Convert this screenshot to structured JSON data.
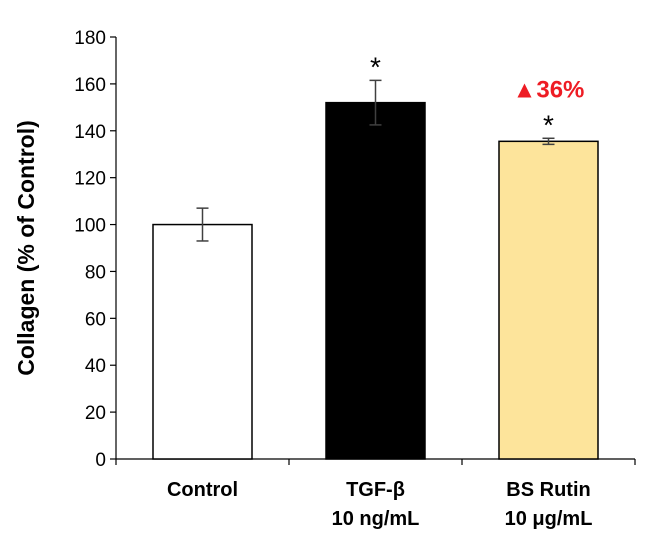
{
  "chart_data": {
    "type": "bar",
    "title": "",
    "xlabel": "",
    "ylabel": "Collagen (% of Control)",
    "ylim": [
      0,
      180
    ],
    "yticks": [
      0,
      20,
      40,
      60,
      80,
      100,
      120,
      140,
      160,
      180
    ],
    "grid": false,
    "categories": [
      {
        "line1": "Control",
        "line2": ""
      },
      {
        "line1": "TGF-β",
        "line2": "10 ng/mL"
      },
      {
        "line1": "BS Rutin",
        "line2": "10 μg/mL"
      }
    ],
    "values": [
      100,
      152,
      135.5
    ],
    "errors": [
      7,
      9.5,
      1.3
    ],
    "bar_colors": [
      "#ffffff",
      "#000000",
      "#fde49b"
    ],
    "significance": [
      "",
      "*",
      "*"
    ],
    "annotation": {
      "text": "▲36%",
      "color": "#ee1c24",
      "bar_index": 2
    }
  }
}
